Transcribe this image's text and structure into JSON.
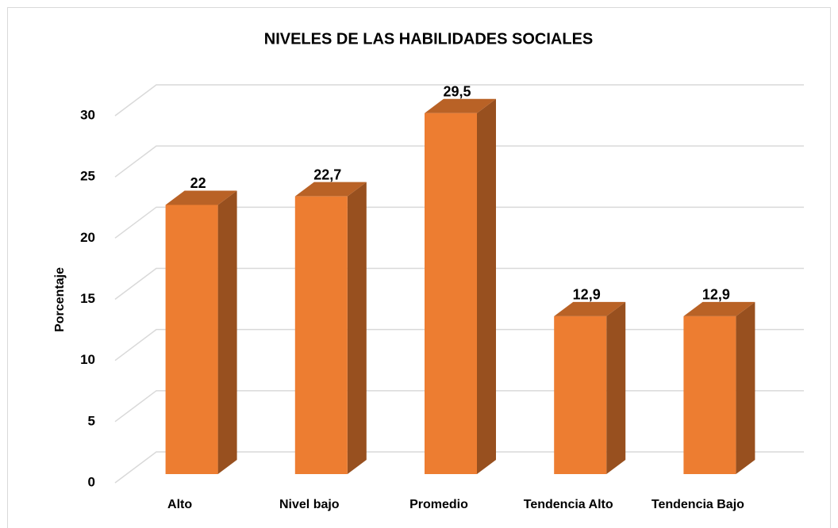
{
  "chart_data": {
    "type": "bar3d",
    "title": "NIVELES DE LAS HABILIDADES SOCIALES",
    "y_label": "Porcentaje",
    "categories": [
      "Alto",
      "Nivel bajo",
      "Promedio",
      "Tendencia Alto",
      "Tendencia Bajo"
    ],
    "values": [
      22,
      22.7,
      29.5,
      12.9,
      12.9
    ],
    "value_labels": [
      "22",
      "22,7",
      "29,5",
      "12,9",
      "12,9"
    ],
    "color": "#ed7d31",
    "ylim": [
      0,
      30
    ],
    "yticks": [
      0,
      5,
      10,
      15,
      20,
      25,
      30
    ],
    "grid": true
  }
}
